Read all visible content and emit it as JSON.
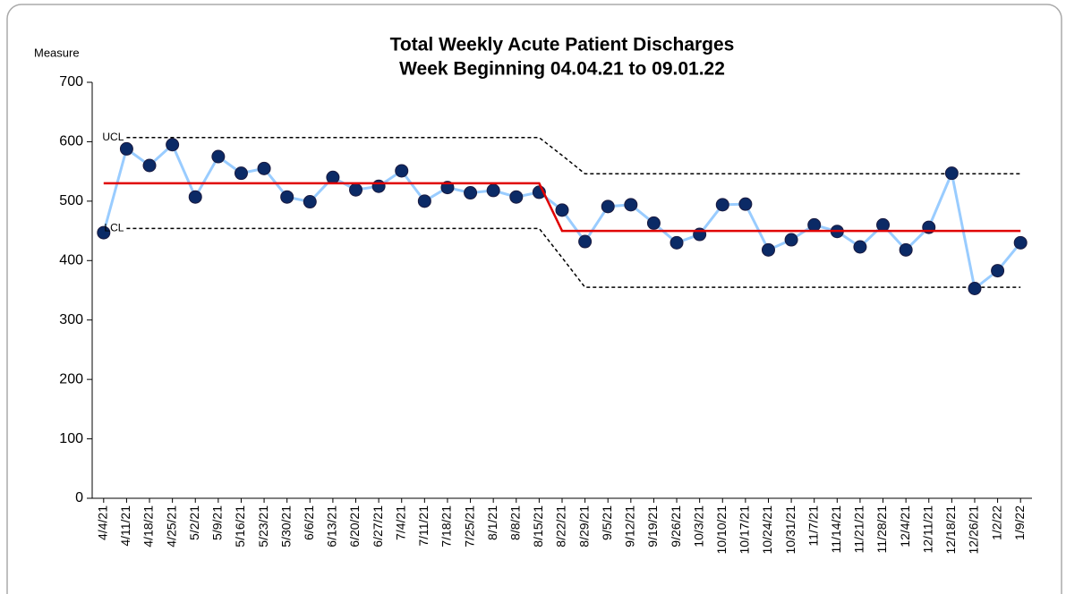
{
  "chart_data": {
    "type": "line",
    "title": "Total Weekly Acute Patient Discharges",
    "subtitle": "Week Beginning 04.04.21 to 09.01.22",
    "y_label": "Measure",
    "annotations": [
      "UCL",
      "LCL"
    ],
    "categories": [
      "4/4/21",
      "4/11/21",
      "4/18/21",
      "4/25/21",
      "5/2/21",
      "5/9/21",
      "5/16/21",
      "5/23/21",
      "5/30/21",
      "6/6/21",
      "6/13/21",
      "6/20/21",
      "6/27/21",
      "7/4/21",
      "7/11/21",
      "7/18/21",
      "7/25/21",
      "8/1/21",
      "8/8/21",
      "8/15/21",
      "8/22/21",
      "8/29/21",
      "9/5/21",
      "9/12/21",
      "9/19/21",
      "9/26/21",
      "10/3/21",
      "10/10/21",
      "10/17/21",
      "10/24/21",
      "10/31/21",
      "11/7/21",
      "11/14/21",
      "11/21/21",
      "11/28/21",
      "12/4/21",
      "12/11/21",
      "12/18/21",
      "12/26/21",
      "1/2/22",
      "1/9/22"
    ],
    "series": [
      {
        "color": "#99ccff",
        "marker_color": "#0b2a66",
        "values": [
          447,
          588,
          560,
          595,
          507,
          575,
          547,
          555,
          507,
          499,
          540,
          519,
          525,
          551,
          500,
          523,
          514,
          518,
          507,
          515,
          485,
          432,
          491,
          494,
          463,
          430,
          444,
          494,
          495,
          418,
          435,
          460,
          449,
          423,
          460,
          418,
          456,
          547,
          353,
          383,
          430
        ]
      },
      {
        "color": "#e00000",
        "values": [
          530,
          530,
          530,
          530,
          530,
          530,
          530,
          530,
          530,
          530,
          530,
          530,
          530,
          530,
          530,
          530,
          530,
          530,
          530,
          530,
          450,
          450,
          450,
          450,
          450,
          450,
          450,
          450,
          450,
          450,
          450,
          450,
          450,
          450,
          450,
          450,
          450,
          450,
          450,
          450,
          450
        ]
      },
      {
        "color": "#000000",
        "dashed": true,
        "values": [
          null,
          607,
          607,
          607,
          607,
          607,
          607,
          607,
          607,
          607,
          607,
          607,
          607,
          607,
          607,
          607,
          607,
          607,
          607,
          607,
          577,
          546,
          546,
          546,
          546,
          546,
          546,
          546,
          546,
          546,
          546,
          546,
          546,
          546,
          546,
          546,
          546,
          546,
          546,
          546,
          546
        ]
      },
      {
        "color": "#000000",
        "dashed": true,
        "values": [
          null,
          454,
          454,
          454,
          454,
          454,
          454,
          454,
          454,
          454,
          454,
          454,
          454,
          454,
          454,
          454,
          454,
          454,
          454,
          454,
          405,
          355,
          355,
          355,
          355,
          355,
          355,
          355,
          355,
          355,
          355,
          355,
          355,
          355,
          355,
          355,
          355,
          355,
          355,
          355,
          355
        ]
      }
    ],
    "ylim": [
      0,
      700
    ],
    "yticks": [
      0,
      100,
      200,
      300,
      400,
      500,
      600,
      700
    ]
  }
}
